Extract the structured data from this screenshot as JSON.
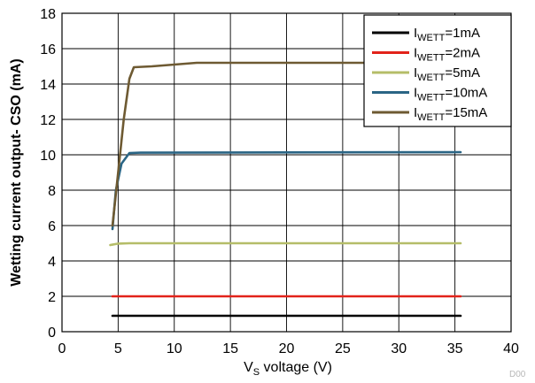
{
  "chart_data": {
    "type": "line",
    "title": "",
    "xlabel_main": "V",
    "xlabel_sub": "S",
    "xlabel_rest": " voltage (V)",
    "ylabel": "Wetting current output- CSO (mA)",
    "xlim": [
      0,
      40
    ],
    "ylim": [
      0,
      18
    ],
    "x_ticks": [
      0,
      5,
      10,
      15,
      20,
      25,
      30,
      35,
      40
    ],
    "y_ticks": [
      0,
      2,
      4,
      6,
      8,
      10,
      12,
      14,
      16,
      18
    ],
    "grid": true,
    "legend_position": "top-right",
    "legend_prefix": "I",
    "legend_sub": "WETT",
    "series": [
      {
        "name": "=1mA",
        "color": "#000000",
        "points": [
          [
            4.5,
            0.9
          ],
          [
            35.5,
            0.9
          ]
        ]
      },
      {
        "name": "=2mA",
        "color": "#e2231a",
        "points": [
          [
            4.5,
            2.0
          ],
          [
            35.5,
            2.0
          ]
        ]
      },
      {
        "name": "=5mA",
        "color": "#b5bd68",
        "points": [
          [
            4.3,
            4.9
          ],
          [
            5.0,
            4.98
          ],
          [
            6.0,
            5.0
          ],
          [
            35.5,
            5.0
          ]
        ]
      },
      {
        "name": "=10mA",
        "color": "#2a6585",
        "points": [
          [
            4.5,
            5.8
          ],
          [
            4.8,
            8.0
          ],
          [
            5.3,
            9.5
          ],
          [
            6.0,
            10.1
          ],
          [
            7.0,
            10.12
          ],
          [
            35.5,
            10.15
          ]
        ]
      },
      {
        "name": "=15mA",
        "color": "#6e5a32",
        "points": [
          [
            4.5,
            6.0
          ],
          [
            5.0,
            9.0
          ],
          [
            5.5,
            12.0
          ],
          [
            6.0,
            14.3
          ],
          [
            6.4,
            14.95
          ],
          [
            8.0,
            15.0
          ],
          [
            12.0,
            15.2
          ],
          [
            35.5,
            15.2
          ]
        ]
      }
    ],
    "footer_code": "D00"
  }
}
